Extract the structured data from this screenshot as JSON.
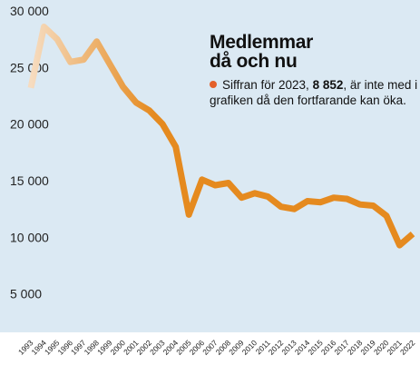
{
  "colors": {
    "background": "#ffffff",
    "plot_background": "#dbe9f3",
    "line_end": "#e58a1f",
    "line_start": "#f6dcc0",
    "bullet": "#e4602a"
  },
  "annotation": {
    "title_line1": "Medlemmar",
    "title_line2": "då och nu",
    "text_before": "Siffran för 2023,",
    "value": "8 852",
    "text_after": ", är inte med i grafiken då den fortfarande kan öka."
  },
  "chart_data": {
    "type": "line",
    "title": "Medlemmar då och nu",
    "xlabel": "",
    "ylabel": "",
    "x": [
      1993,
      1994,
      1995,
      1996,
      1997,
      1998,
      1999,
      2000,
      2001,
      2002,
      2003,
      2004,
      2005,
      2006,
      2007,
      2008,
      2009,
      2010,
      2011,
      2012,
      2013,
      2014,
      2015,
      2016,
      2017,
      2018,
      2019,
      2020,
      2021,
      2022
    ],
    "x_tick_labels": [
      "1993",
      "1994",
      "1995",
      "1996",
      "1997",
      "1998",
      "1999",
      "2000",
      "2001",
      "2002",
      "2003",
      "2004",
      "2005",
      "2006",
      "2007",
      "2008",
      "2009",
      "2010",
      "2011",
      "2012",
      "2013",
      "2014",
      "2015",
      "2016",
      "2017",
      "2018",
      "2019",
      "2020",
      "2021",
      "2022"
    ],
    "series": [
      {
        "values": [
          23200,
          28600,
          27500,
          25500,
          25700,
          27300,
          25300,
          23300,
          21900,
          21200,
          20000,
          18000,
          12000,
          15100,
          14600,
          14800,
          13500,
          13900,
          13600,
          12700,
          12500,
          13200,
          13100,
          13500,
          13400,
          12900,
          12800,
          11900,
          9300,
          10300
        ]
      }
    ],
    "y_ticks": [
      5000,
      10000,
      15000,
      20000,
      25000,
      30000
    ],
    "y_tick_labels": [
      "5 000",
      "10 000",
      "15 000",
      "20 000",
      "25 000",
      "30 000"
    ],
    "ylim": [
      0,
      30000
    ],
    "grid": false,
    "legend": "none"
  }
}
